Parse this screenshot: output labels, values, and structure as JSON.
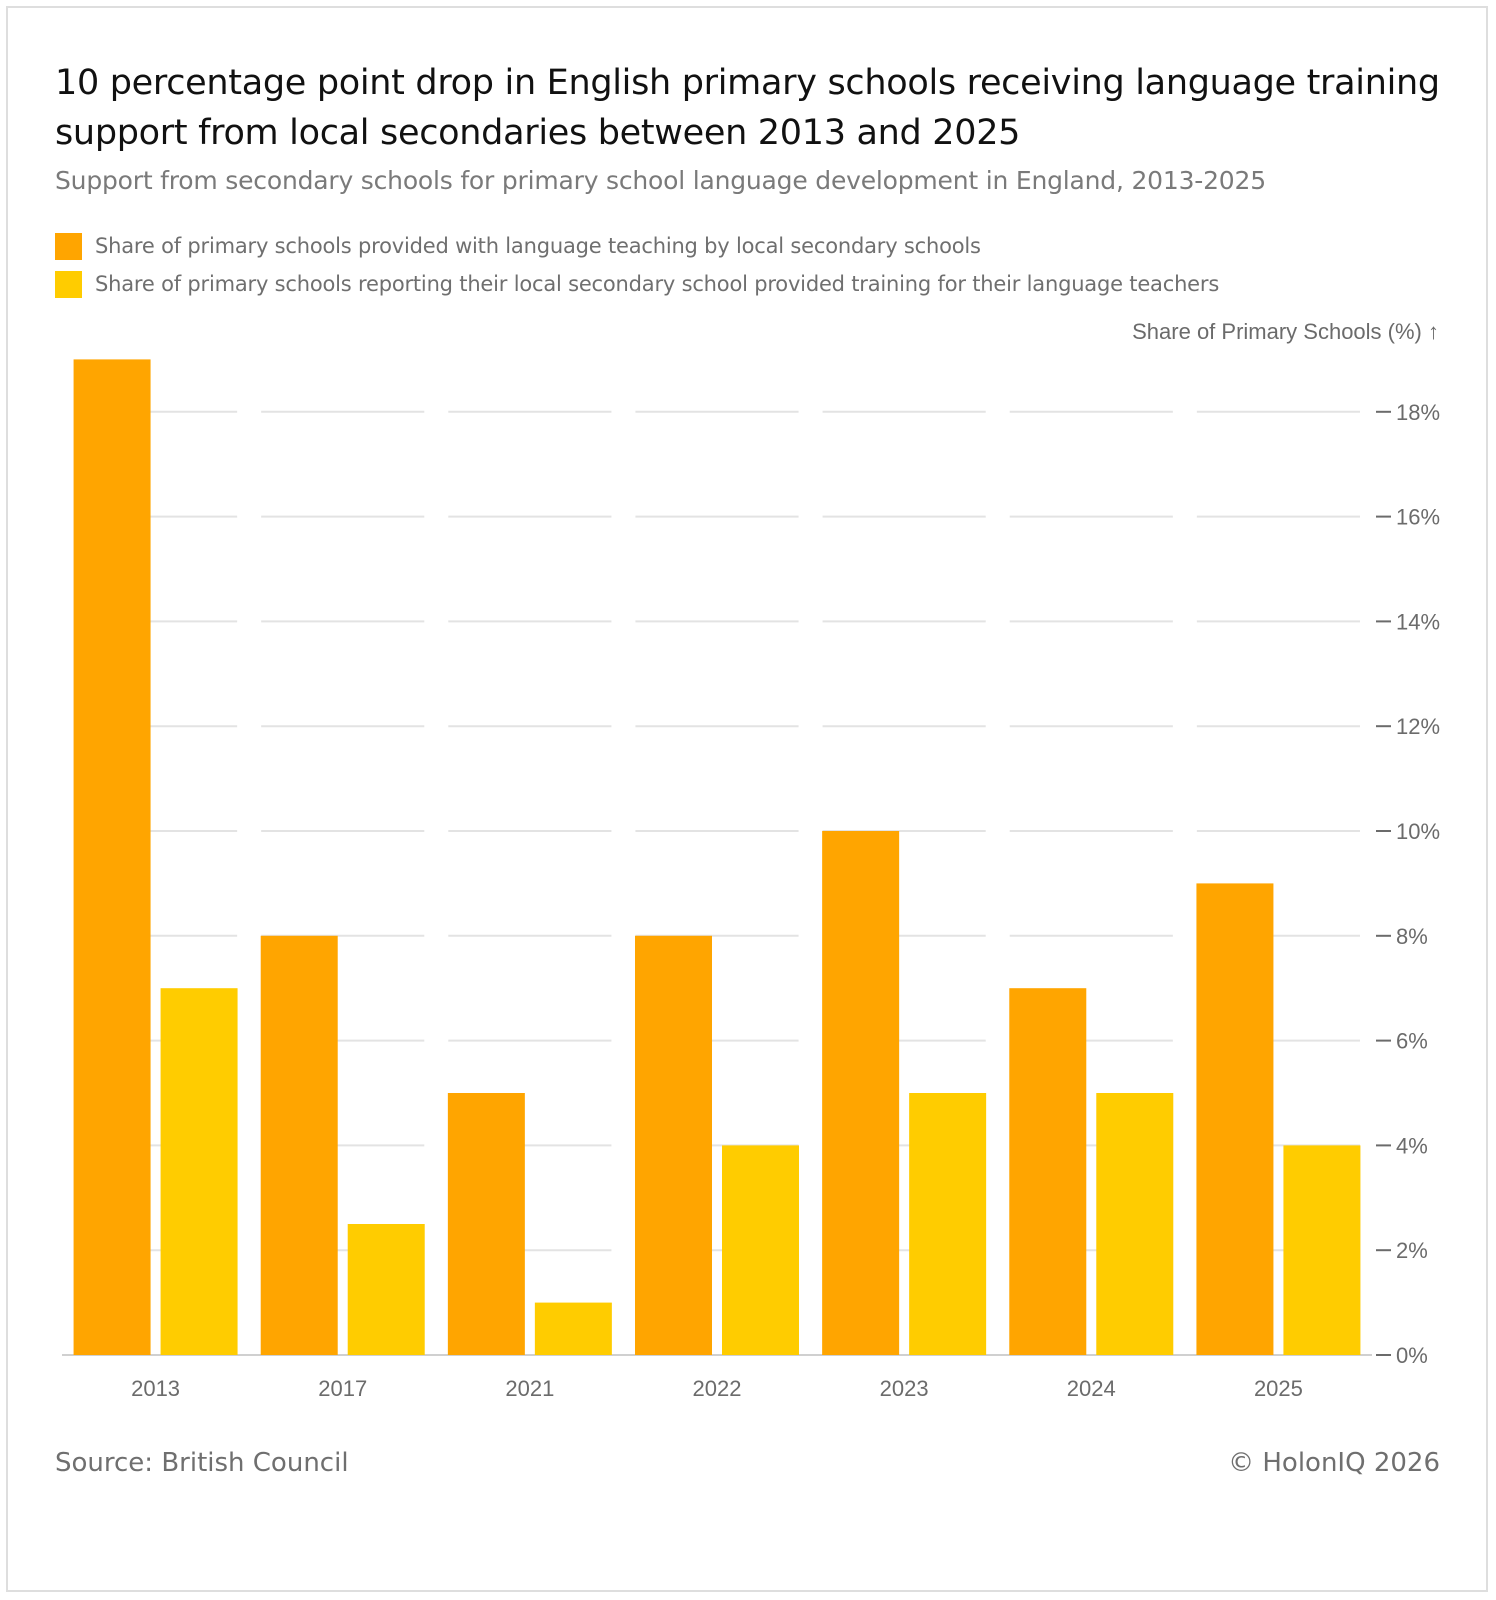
{
  "header": {
    "title": "10 percentage point drop in English primary schools receiving language training support from local secondaries between 2013 and 2025",
    "subtitle": "Support from secondary schools for primary school language development in England, 2013-2025"
  },
  "footer": {
    "source": "Source: British Council",
    "copyright": "© HolonIQ 2026"
  },
  "colors": {
    "series1": "#FFA500",
    "series2": "#FFCC00",
    "grid": "#e3e3e3",
    "axis_text": "#6b6b6b"
  },
  "chart_data": {
    "type": "bar",
    "title": "10 percentage point drop in English primary schools receiving language training support from local secondaries between 2013 and 2025",
    "subtitle": "Support from secondary schools for primary school language development in England, 2013-2025",
    "ylabel": "Share of Primary Schools (%) ↑",
    "xlabel": "",
    "categories": [
      "2013",
      "2017",
      "2021",
      "2022",
      "2023",
      "2024",
      "2025"
    ],
    "series": [
      {
        "name": "Share of primary schools provided with language teaching by local secondary schools",
        "values": [
          19,
          8,
          5,
          8,
          10,
          7,
          9
        ]
      },
      {
        "name": "Share of primary schools reporting their local secondary school provided training for their language teachers",
        "values": [
          7,
          2.5,
          1,
          4,
          5,
          5,
          4
        ]
      }
    ],
    "ylim": [
      0,
      19
    ],
    "yticks": [
      0,
      2,
      4,
      6,
      8,
      10,
      12,
      14,
      16,
      18
    ],
    "ytick_labels": [
      "0%",
      "2%",
      "4%",
      "6%",
      "8%",
      "10%",
      "12%",
      "14%",
      "16%",
      "18%"
    ],
    "grid": true,
    "y_axis_position": "right",
    "legend_position": "top-left"
  }
}
